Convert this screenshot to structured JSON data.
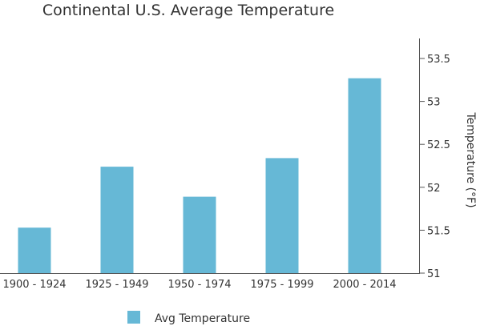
{
  "chart_data": {
    "type": "bar",
    "title": "Continental U.S. Average Temperature",
    "categories": [
      "1900 - 1924",
      "1925 - 1949",
      "1950 - 1974",
      "1975 - 1999",
      "2000 - 2014"
    ],
    "series": [
      {
        "name": "Avg Temperature",
        "color": "#66b8d6",
        "values": [
          51.53,
          52.24,
          51.89,
          52.34,
          53.27
        ]
      }
    ],
    "xlabel": "",
    "ylabel": "Temperature (°F)",
    "ylim": [
      51,
      53.7
    ],
    "yticks": [
      51,
      51.5,
      52,
      52.5,
      53,
      53.5
    ],
    "ytick_labels": [
      "51",
      "51.5",
      "52",
      "52.5",
      "53",
      "53.5"
    ],
    "y_axis_side": "right",
    "grid": false,
    "legend_position": "bottom-left"
  }
}
